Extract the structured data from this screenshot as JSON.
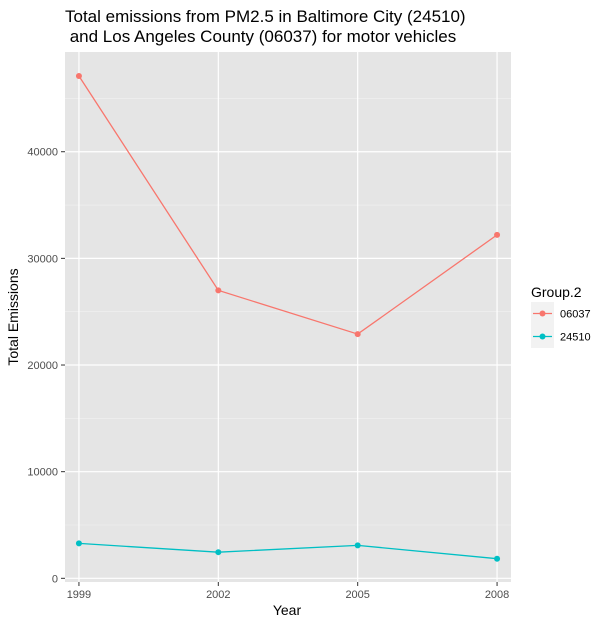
{
  "chart_data": {
    "type": "line",
    "title_line1": "Total emissions from PM2.5 in Baltimore City (24510)",
    "title_line2": " and Los Angeles County (06037) for motor vehicles",
    "xlabel": "Year",
    "ylabel": "Total Emissions",
    "x": [
      1999,
      2002,
      2005,
      2008
    ],
    "x_tick_labels": [
      "1999",
      "2002",
      "2005",
      "2008"
    ],
    "y_ticks": [
      0,
      10000,
      20000,
      30000,
      40000
    ],
    "y_tick_labels": [
      "0",
      "10000",
      "20000",
      "30000",
      "40000"
    ],
    "xlim": [
      1998.7,
      2008.3
    ],
    "ylim": [
      -345,
      49350
    ],
    "grid": true,
    "legend": {
      "title": "Group.2",
      "position": "right"
    },
    "series": [
      {
        "name": "06037",
        "color": "#F8766D",
        "values": [
          47100,
          27000,
          22900,
          32200
        ]
      },
      {
        "name": "24510",
        "color": "#00BFC4",
        "values": [
          3275,
          2450,
          3090,
          1840
        ]
      }
    ]
  }
}
